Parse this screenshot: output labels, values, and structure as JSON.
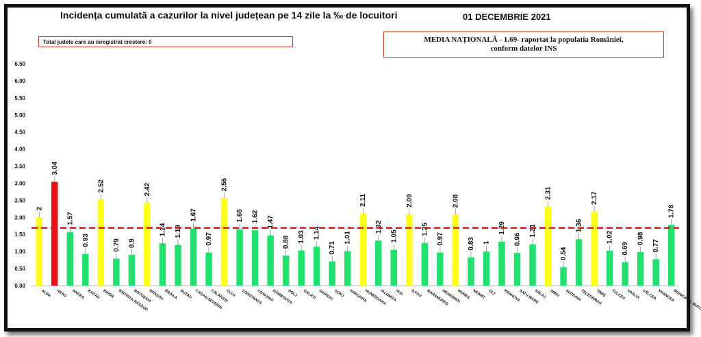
{
  "header": {
    "title": "Incidența cumulată a cazurilor la nivel județean pe 14 zile la ‰ de locuitori",
    "date": "01 DECEMBRIE 2021",
    "increase_note": "Total judete care au inregistrat crestere: 0",
    "national_line1": "MEDIA NAȚIONALĂ - 1.69- raportat la populatia României,",
    "national_line2": "conform datelor INS"
  },
  "colors": {
    "green": "#22e06e",
    "yellow": "#ffff1a",
    "red": "#e8101a",
    "average_line": "#d7191c"
  },
  "chart_data": {
    "type": "bar",
    "title": "Incidența cumulată a cazurilor la nivel județean pe 14 zile la ‰ de locuitori",
    "xlabel": "",
    "ylabel": "",
    "ylim": [
      0,
      6.5
    ],
    "yticks": [
      "0.00",
      "0.50",
      "1.00",
      "1.50",
      "2.00",
      "2.50",
      "3.00",
      "3.50",
      "4.00",
      "4.50",
      "5.00",
      "5.50",
      "6.00",
      "6.50"
    ],
    "grid": false,
    "average": 1.69,
    "categories": [
      "ALBA",
      "ARAD",
      "ARGEȘ",
      "BACĂU",
      "BIHOR",
      "BISTRIȚA-NĂSĂUD",
      "BOTOȘANI",
      "BRAȘOV",
      "BRĂILA",
      "BUZĂU",
      "CARAȘ-SEVERIN",
      "CĂLĂRAȘI",
      "CLUJ",
      "CONSTANȚA",
      "COVASNA",
      "DÂMBOVIȚA",
      "DOLJ",
      "GALAȚI",
      "GIURGIU",
      "GORJ",
      "HARGHITA",
      "HUNEDOARA",
      "IALOMIȚA",
      "IAȘI",
      "ILFOV",
      "MARAMUREȘ",
      "MEHEDINȚI",
      "MUREȘ",
      "NEAMȚ",
      "OLT",
      "PRAHOVA",
      "SATU MARE",
      "SĂLAJ",
      "SIBIU",
      "SUCEAVA",
      "TELEORMAN",
      "TIMIȘ",
      "TULCEA",
      "VASLUI",
      "VÂLCEA",
      "VRANCEA",
      "MUNICIPIUL BUCUREȘTI"
    ],
    "values": [
      2,
      3.04,
      1.57,
      0.93,
      2.52,
      0.79,
      0.9,
      2.42,
      1.24,
      1.19,
      1.67,
      0.97,
      2.56,
      1.65,
      1.62,
      1.47,
      0.88,
      1.03,
      1.14,
      0.71,
      1.01,
      2.11,
      1.32,
      1.05,
      2.09,
      1.25,
      0.97,
      2.08,
      0.83,
      1,
      1.29,
      0.96,
      1.21,
      2.31,
      0.54,
      1.36,
      2.17,
      1.02,
      0.69,
      0.98,
      0.77,
      1.78
    ],
    "value_labels": [
      "2",
      "3.04",
      "1.57",
      "0.93",
      "2.52",
      "0.79",
      "0.9",
      "2.42",
      "1.24",
      "1.19",
      "1.67",
      "0.97",
      "2.56",
      "1.65",
      "1.62",
      "1.47",
      "0.88",
      "1.03",
      "1.14",
      "0.71",
      "1.01",
      "2.11",
      "1.32",
      "1.05",
      "2.09",
      "1.25",
      "0.97",
      "2.08",
      "0.83",
      "1",
      "1.29",
      "0.96",
      "1.21",
      "2.31",
      "0.54",
      "1.36",
      "2.17",
      "1.02",
      "0.69",
      "0.98",
      "0.77",
      "1.78"
    ],
    "bar_colors": [
      "yellow",
      "red",
      "green",
      "green",
      "yellow",
      "green",
      "green",
      "yellow",
      "green",
      "green",
      "green",
      "green",
      "yellow",
      "green",
      "green",
      "green",
      "green",
      "green",
      "green",
      "green",
      "green",
      "yellow",
      "green",
      "green",
      "yellow",
      "green",
      "green",
      "yellow",
      "green",
      "green",
      "green",
      "green",
      "green",
      "yellow",
      "green",
      "green",
      "yellow",
      "green",
      "green",
      "green",
      "green",
      "green"
    ]
  }
}
